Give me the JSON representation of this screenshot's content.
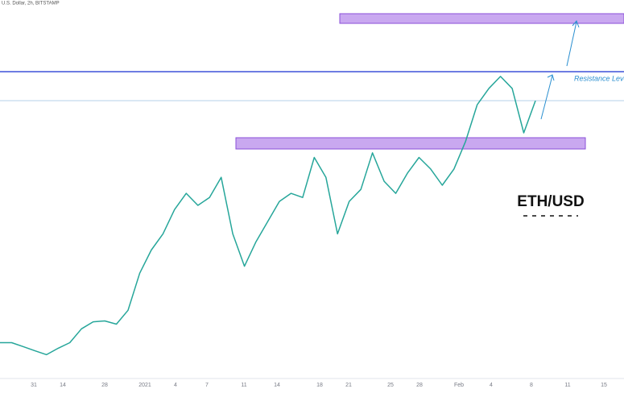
{
  "chart_data": {
    "type": "line",
    "title": "U.S. Dollar, 2h, BITSTAMP",
    "annotations": [
      "Resistance Level",
      "ETH/USD"
    ],
    "x_labels": [
      "31",
      "14",
      "28",
      "2021",
      "4",
      "7",
      "11",
      "14",
      "18",
      "21",
      "25",
      "28",
      "Feb",
      "4",
      "8",
      "11",
      "15"
    ],
    "values": [
      600,
      600,
      583,
      565,
      548,
      576,
      600,
      660,
      690,
      694,
      680,
      740,
      900,
      1000,
      1070,
      1175,
      1245,
      1193,
      1227,
      1314,
      1070,
      930,
      1036,
      1123,
      1210,
      1245,
      1227,
      1400,
      1314,
      1070,
      1210,
      1262,
      1420,
      1297,
      1245,
      1332,
      1400,
      1350,
      1280,
      1350,
      1470,
      1628,
      1698,
      1750,
      1698,
      1506,
      1645
    ],
    "color": "#26a69a",
    "ylim": [
      400,
      2080
    ]
  }
}
